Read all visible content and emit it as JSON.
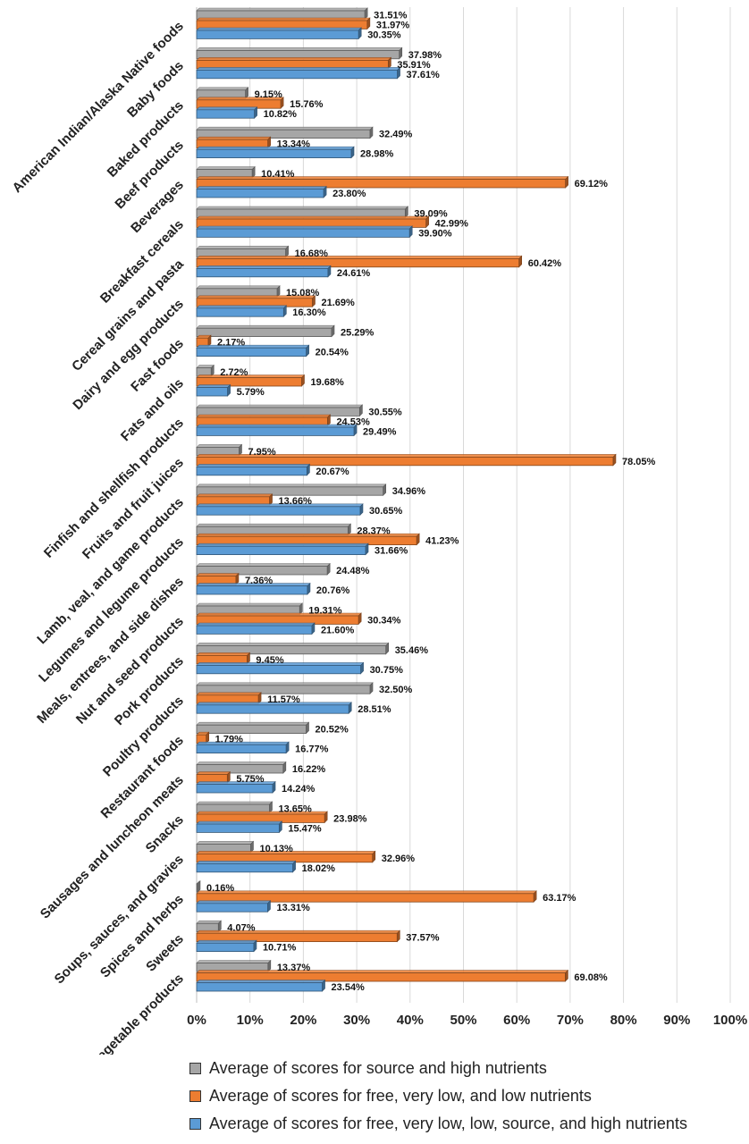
{
  "chart_data": {
    "type": "bar",
    "orientation": "horizontal",
    "categories": [
      "American Indian/Alaska Native foods",
      "Baby foods",
      "Baked products",
      "Beef products",
      "Beverages",
      "Breakfast cereals",
      "Cereal grains and pasta",
      "Dairy and egg products",
      "Fast foods",
      "Fats and oils",
      "Finfish and shellfish products",
      "Fruits and fruit juices",
      "Lamb, veal, and game products",
      "Legumes and legume products",
      "Meals, entrees, and side dishes",
      "Nut and seed products",
      "Pork products",
      "Poultry products",
      "Restaurant foods",
      "Sausages and luncheon meats",
      "Snacks",
      "Soups, sauces, and gravies",
      "Spices and herbs",
      "Sweets",
      "Vegetables and vegetable products"
    ],
    "series": [
      {
        "name": "Average of scores for source and high nutrients",
        "color": "#a6a6a6",
        "values": [
          31.51,
          37.98,
          9.15,
          32.49,
          10.41,
          39.09,
          16.68,
          15.08,
          25.29,
          2.72,
          30.55,
          7.95,
          34.96,
          28.37,
          24.48,
          19.31,
          35.46,
          32.5,
          20.52,
          16.22,
          13.65,
          10.13,
          0.16,
          4.07,
          13.37
        ],
        "labels": [
          "31.51%",
          "37.98%",
          "9.15%",
          "32.49%",
          "10.41%",
          "39.09%",
          "16.68%",
          "15.08%",
          "25.29%",
          "2.72%",
          "30.55%",
          "7.95%",
          "34.96%",
          "28.37%",
          "24.48%",
          "19.31%",
          "35.46%",
          "32.50%",
          "20.52%",
          "16.22%",
          "13.65%",
          "10.13%",
          "0.16%",
          "4.07%",
          "13.37%"
        ]
      },
      {
        "name": "Average of scores for free, very low, and low nutrients",
        "color": "#ed7d31",
        "values": [
          31.97,
          35.91,
          15.76,
          13.34,
          69.12,
          42.99,
          60.42,
          21.69,
          2.17,
          19.68,
          24.53,
          78.05,
          13.66,
          41.23,
          7.36,
          30.34,
          9.45,
          11.57,
          1.79,
          5.75,
          23.98,
          32.96,
          63.17,
          37.57,
          69.08
        ],
        "labels": [
          "31.97%",
          "35.91%",
          "15.76%",
          "13.34%",
          "69.12%",
          "42.99%",
          "60.42%",
          "21.69%",
          "2.17%",
          "19.68%",
          "24.53%",
          "78.05%",
          "13.66%",
          "41.23%",
          "7.36%",
          "30.34%",
          "9.45%",
          "11.57%",
          "1.79%",
          "5.75%",
          "23.98%",
          "32.96%",
          "63.17%",
          "37.57%",
          "69.08%"
        ]
      },
      {
        "name": "Average of scores for free, very low, low, source, and high nutrients",
        "color": "#5b9bd5",
        "values": [
          30.35,
          37.61,
          10.82,
          28.98,
          23.8,
          39.9,
          24.61,
          16.3,
          20.54,
          5.79,
          29.49,
          20.67,
          30.65,
          31.66,
          20.76,
          21.6,
          30.75,
          28.51,
          16.77,
          14.24,
          15.47,
          18.02,
          13.31,
          10.71,
          23.54
        ],
        "labels": [
          "30.35%",
          "37.61%",
          "10.82%",
          "28.98%",
          "23.80%",
          "39.90%",
          "24.61%",
          "16.30%",
          "20.54%",
          "5.79%",
          "29.49%",
          "20.67%",
          "30.65%",
          "31.66%",
          "20.76%",
          "21.60%",
          "30.75%",
          "28.51%",
          "16.77%",
          "14.24%",
          "15.47%",
          "18.02%",
          "13.31%",
          "10.71%",
          "23.54%"
        ]
      }
    ],
    "xlim": [
      0,
      100
    ],
    "x_ticks": [
      "0%",
      "10%",
      "20%",
      "30%",
      "40%",
      "50%",
      "60%",
      "70%",
      "80%",
      "90%",
      "100%"
    ],
    "grid": true,
    "legend_position": "bottom",
    "title": "",
    "xlabel": "",
    "ylabel": ""
  }
}
